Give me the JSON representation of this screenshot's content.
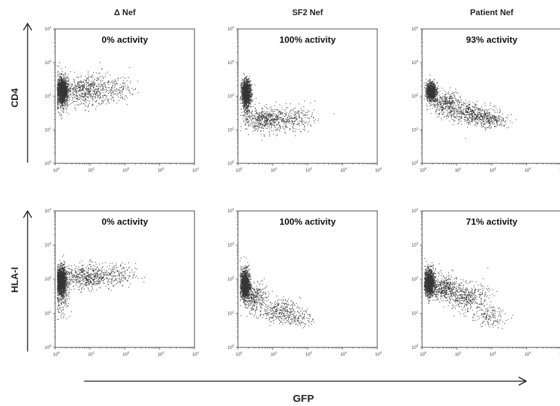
{
  "chart_data": {
    "type": "scatter",
    "layout": "2x3 grid of flow-cytometry dot plots",
    "column_titles": [
      "Δ Nef",
      "SF2 Nef",
      "Patient Nef"
    ],
    "row_labels": [
      "CD4",
      "HLA-I"
    ],
    "xlabel": "GFP",
    "x_scale": "log",
    "y_scale": "log",
    "xlim": [
      1,
      10000
    ],
    "ylim": [
      1,
      10000
    ],
    "tick_labels": [
      "10^0",
      "10^1",
      "10^2",
      "10^3",
      "10^4"
    ],
    "panels": [
      {
        "row": "CD4",
        "column": "Δ Nef",
        "annotation": "0% activity",
        "clusters": [
          {
            "x": 1.6,
            "y": 140,
            "sx": 0.07,
            "sy": 0.16,
            "n": 1400
          },
          {
            "x": 1.5,
            "y": 130,
            "sx": 0.1,
            "sy": 0.32,
            "n": 300
          },
          {
            "x": 8,
            "y": 150,
            "sx": 0.42,
            "sy": 0.22,
            "n": 650
          },
          {
            "x": 60,
            "y": 160,
            "sx": 0.25,
            "sy": 0.2,
            "n": 120
          }
        ]
      },
      {
        "row": "CD4",
        "column": "SF2 Nef",
        "annotation": "100% activity",
        "clusters": [
          {
            "x": 1.7,
            "y": 130,
            "sx": 0.065,
            "sy": 0.18,
            "n": 1400
          },
          {
            "x": 1.7,
            "y": 60,
            "sx": 0.06,
            "sy": 0.3,
            "n": 200
          },
          {
            "x": 6,
            "y": 20,
            "sx": 0.3,
            "sy": 0.18,
            "n": 500
          },
          {
            "x": 40,
            "y": 22,
            "sx": 0.3,
            "sy": 0.18,
            "n": 250
          }
        ]
      },
      {
        "row": "CD4",
        "column": "Patient Nef",
        "annotation": "93% activity",
        "clusters": [
          {
            "x": 1.8,
            "y": 140,
            "sx": 0.07,
            "sy": 0.13,
            "n": 1100
          },
          {
            "x": 5,
            "y": 60,
            "sx": 0.22,
            "sy": 0.18,
            "n": 400
          },
          {
            "x": 25,
            "y": 30,
            "sx": 0.28,
            "sy": 0.15,
            "n": 450
          },
          {
            "x": 100,
            "y": 20,
            "sx": 0.22,
            "sy": 0.12,
            "n": 220
          }
        ]
      },
      {
        "row": "HLA-I",
        "column": "Δ Nef",
        "annotation": "0% activity",
        "clusters": [
          {
            "x": 1.5,
            "y": 90,
            "sx": 0.065,
            "sy": 0.2,
            "n": 1500
          },
          {
            "x": 1.5,
            "y": 40,
            "sx": 0.1,
            "sy": 0.3,
            "n": 250
          },
          {
            "x": 7,
            "y": 120,
            "sx": 0.35,
            "sy": 0.18,
            "n": 550
          },
          {
            "x": 50,
            "y": 130,
            "sx": 0.3,
            "sy": 0.18,
            "n": 200
          }
        ]
      },
      {
        "row": "HLA-I",
        "column": "SF2 Nef",
        "annotation": "100% activity",
        "clusters": [
          {
            "x": 1.6,
            "y": 70,
            "sx": 0.065,
            "sy": 0.22,
            "n": 1400
          },
          {
            "x": 3,
            "y": 30,
            "sx": 0.18,
            "sy": 0.2,
            "n": 300
          },
          {
            "x": 15,
            "y": 12,
            "sx": 0.3,
            "sy": 0.17,
            "n": 350
          },
          {
            "x": 60,
            "y": 7,
            "sx": 0.2,
            "sy": 0.12,
            "n": 100
          }
        ]
      },
      {
        "row": "HLA-I",
        "column": "Patient Nef",
        "annotation": "71% activity",
        "clusters": [
          {
            "x": 1.6,
            "y": 80,
            "sx": 0.07,
            "sy": 0.2,
            "n": 1300
          },
          {
            "x": 4,
            "y": 60,
            "sx": 0.22,
            "sy": 0.18,
            "n": 450
          },
          {
            "x": 20,
            "y": 30,
            "sx": 0.3,
            "sy": 0.2,
            "n": 420
          },
          {
            "x": 80,
            "y": 8,
            "sx": 0.25,
            "sy": 0.15,
            "n": 150
          }
        ]
      }
    ]
  }
}
